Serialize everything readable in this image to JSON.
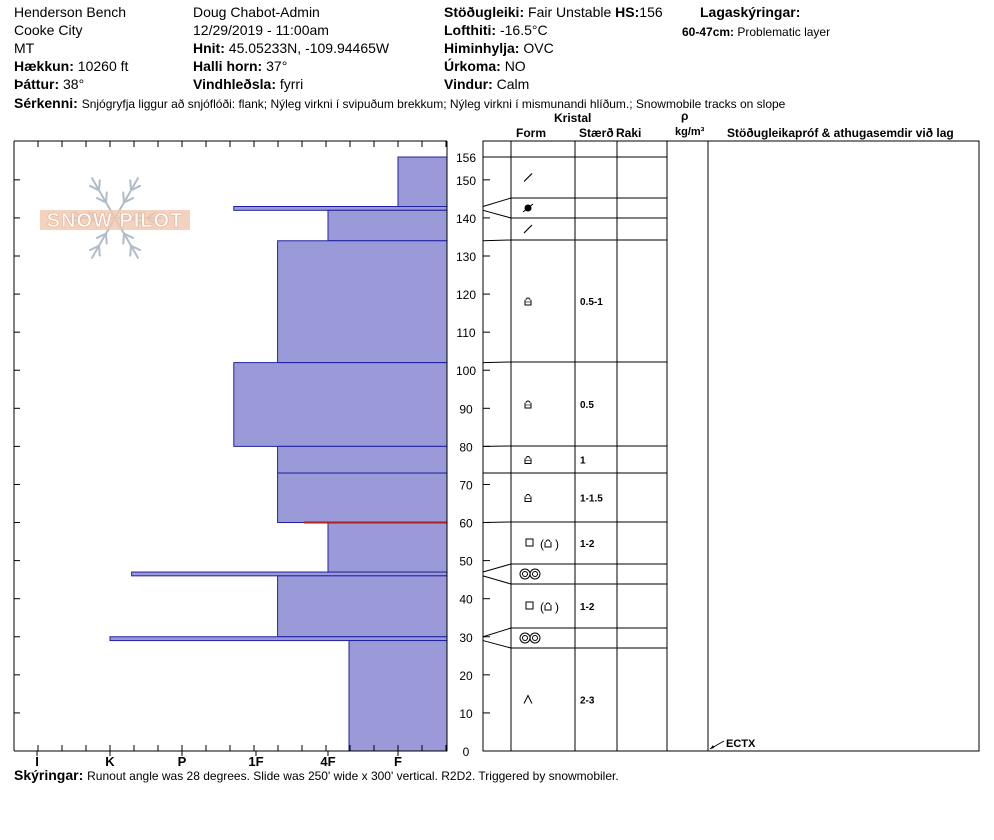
{
  "header": {
    "location": "Henderson Bench",
    "area": "Cooke City",
    "state": "MT",
    "elevation_label": "Hækkun:",
    "elevation_value": "10260 ft",
    "aspect_label": "Þáttur:",
    "aspect_value": "38°",
    "observer": "Doug Chabot-Admin",
    "datetime": "12/29/2019 - 11:00am",
    "coords_label": "Hnit:",
    "coords_value": "45.05233N, -109.94465W",
    "slope_label": "Halli horn:",
    "slope_value": "37°",
    "wind_loading_label": "Vindhleðsla:",
    "wind_loading_value": "fyrri",
    "stability_label": "Stöðugleiki:",
    "stability_value": "Fair Unstable",
    "hs_label": "HS:",
    "hs_value": "156",
    "air_temp_label": "Lofthiti:",
    "air_temp_value": "-16.5°C",
    "sky_label": "Himinhylja:",
    "sky_value": "OVC",
    "precip_label": "Úrkoma:",
    "precip_value": "NO",
    "wind_label": "Vindur:",
    "wind_value": "Calm",
    "layer_notes_label": "Lagaskýringar:",
    "layer_notes_range": "60-47cm:",
    "layer_notes_text": "Problematic layer",
    "features_label": "Sérkenni:",
    "features_text": "Snjógryfja liggur að snjóflóði: flank; Nýleg virkni í svipuðum brekkum; Nýleg virkni í mismunandi hlíðum.; Snowmobile tracks on slope"
  },
  "logo": {
    "text": "SNOW PILOT"
  },
  "table_headers": {
    "crystal": "Kristal",
    "form": "Form",
    "size": "Stærð",
    "moisture": "Raki",
    "rho": "ρ",
    "density_unit": "kg/m³",
    "tests": "Stöðugleikapróf & athugasemdir við lag"
  },
  "footer": {
    "notes_label": "Skýringar:",
    "notes_text": "Runout angle was 28 degrees. Slide was 250' wide x 300' vertical. R2D2. Triggered by snowmobiler."
  },
  "colors": {
    "fill": "#9a9ad8",
    "stroke": "#2020a0",
    "weak": "#b02020"
  },
  "chart_data": {
    "type": "bar",
    "title": "",
    "xlabel": "",
    "ylabel": "",
    "ylim": [
      0,
      156
    ],
    "hardness_scale": [
      "I",
      "K",
      "P",
      "1F",
      "4F",
      "F"
    ],
    "y_ticks": [
      0,
      10,
      20,
      30,
      40,
      50,
      60,
      70,
      80,
      90,
      100,
      110,
      120,
      130,
      140,
      150,
      156
    ],
    "layers": [
      {
        "top": 156,
        "bottom": 143,
        "hardness_index": 0.0,
        "form": "slash",
        "size": ""
      },
      {
        "top": 143,
        "bottom": 142,
        "hardness_index": 2.3,
        "form": "dot",
        "size": ""
      },
      {
        "top": 142,
        "bottom": 134,
        "hardness_index": 1.0,
        "form": "slash",
        "size": ""
      },
      {
        "top": 134,
        "bottom": 102,
        "hardness_index": 1.7,
        "form": "cup",
        "size": "0.5-1"
      },
      {
        "top": 102,
        "bottom": 80,
        "hardness_index": 2.3,
        "form": "cup",
        "size": "0.5"
      },
      {
        "top": 80,
        "bottom": 73,
        "hardness_index": 1.7,
        "form": "cup",
        "size": "1"
      },
      {
        "top": 73,
        "bottom": 60,
        "hardness_index": 1.7,
        "form": "cup",
        "size": "1-1.5"
      },
      {
        "top": 60,
        "bottom": 47,
        "hardness_index": 1.0,
        "form": "square-cup",
        "size": "1-2"
      },
      {
        "top": 47,
        "bottom": 46,
        "hardness_index": 3.7,
        "form": "rings",
        "size": ""
      },
      {
        "top": 46,
        "bottom": 30,
        "hardness_index": 1.7,
        "form": "square-cup",
        "size": "1-2"
      },
      {
        "top": 30,
        "bottom": 29,
        "hardness_index": 4.0,
        "form": "rings",
        "size": ""
      },
      {
        "top": 29,
        "bottom": 0,
        "hardness_index": 0.7,
        "form": "caret",
        "size": "2-3"
      }
    ],
    "weak_layer": 60,
    "stability_tests": [
      {
        "height": 0,
        "label": "ECTX"
      }
    ]
  }
}
